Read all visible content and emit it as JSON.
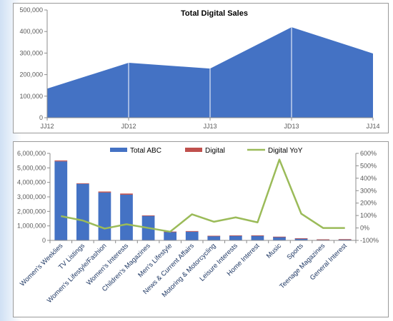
{
  "charts": {
    "area": {
      "type": "area",
      "title": "Total Digital Sales",
      "categories": [
        "JJ12",
        "JD12",
        "JJ13",
        "JD13",
        "JJ14"
      ],
      "values": [
        135000,
        255000,
        228000,
        420000,
        298000
      ],
      "y_ticks": [
        "0",
        "100,000",
        "200,000",
        "300,000",
        "400,000",
        "500,000"
      ],
      "ylim": [
        0,
        500000
      ],
      "grid": false,
      "colors": {
        "area": "#4472c4"
      }
    },
    "combo": {
      "type": "bar",
      "categories": [
        "Women's Weeklies",
        "TV Listings",
        "Women's Lifestyle/Fashion",
        "Women's Interests",
        "Children's Magazines",
        "Men's Lifestyle",
        "News & Current Affairs",
        "Motoring & Motorcycling",
        "Leisure Interests",
        "Home Interest",
        "Music",
        "Sports",
        "Teenage Magazines",
        "General Interest"
      ],
      "series": [
        {
          "name": "Total ABC",
          "values": [
            5450000,
            3900000,
            3300000,
            3150000,
            1700000,
            600000,
            600000,
            300000,
            330000,
            330000,
            250000,
            140000,
            70000,
            80000
          ],
          "color": "#4472c4"
        },
        {
          "name": "Digital",
          "values": [
            60000,
            40000,
            70000,
            80000,
            20000,
            5000,
            45000,
            20000,
            12000,
            15000,
            5000,
            4000,
            2000,
            2000
          ],
          "color": "#c0504d"
        },
        {
          "name": "Digital YoY",
          "values": [
            95,
            60,
            -5,
            30,
            0,
            -30,
            110,
            50,
            85,
            45,
            550,
            115,
            0,
            0
          ],
          "color": "#9bbb59",
          "axis": "right"
        }
      ],
      "left_ticks": [
        "0",
        "1,000,000",
        "2,000,000",
        "3,000,000",
        "4,000,000",
        "5,000,000",
        "6,000,000"
      ],
      "right_ticks": [
        "-100%",
        "0%",
        "100%",
        "200%",
        "300%",
        "400%",
        "500%",
        "600%"
      ],
      "ylim_left": [
        0,
        6000000
      ],
      "ylim_right": [
        -100,
        600
      ],
      "legend_position": "top",
      "grid": false
    }
  }
}
